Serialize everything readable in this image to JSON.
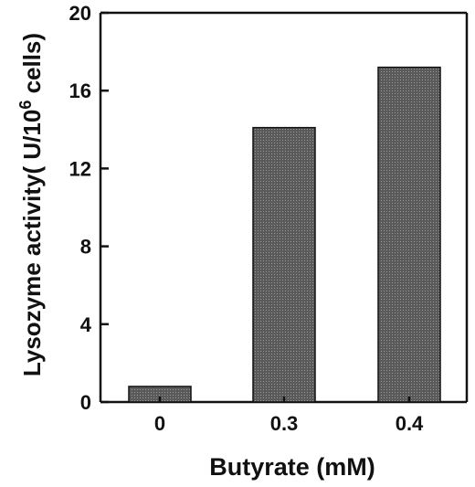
{
  "chart_data": {
    "type": "bar",
    "categories": [
      "0",
      "0.3",
      "0.4"
    ],
    "values": [
      0.8,
      14.1,
      17.2
    ],
    "xlabel": "Butyrate (mM)",
    "ylabel": {
      "prefix": "Lysozyme activity( U/10",
      "superscript": "6",
      "suffix": " cells)"
    },
    "ylim": [
      0,
      20
    ],
    "yticks": [
      "0",
      "4",
      "8",
      "12",
      "16",
      "20"
    ],
    "grid": false,
    "legend": "none",
    "colors": {
      "bar_fill": "#5a5a5a",
      "bar_pattern_dot": "#9a9a9a",
      "axis": "#111111"
    }
  }
}
